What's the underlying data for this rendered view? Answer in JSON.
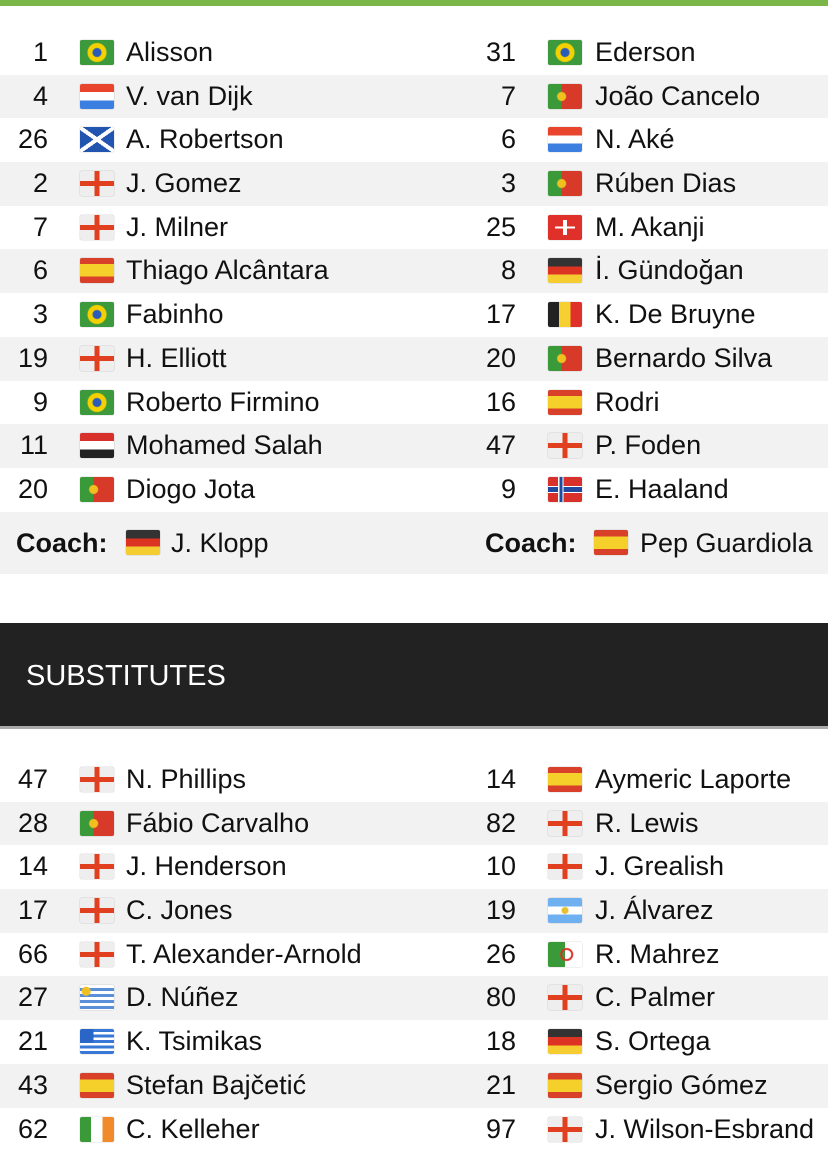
{
  "starting": {
    "home": [
      {
        "num": "1",
        "flag": "br",
        "name": "Alisson"
      },
      {
        "num": "4",
        "flag": "nl",
        "name": "V. van Dijk"
      },
      {
        "num": "26",
        "flag": "sco",
        "name": "A. Robertson"
      },
      {
        "num": "2",
        "flag": "eng",
        "name": "J. Gomez"
      },
      {
        "num": "7",
        "flag": "eng",
        "name": "J. Milner"
      },
      {
        "num": "6",
        "flag": "es",
        "name": "Thiago Alcântara"
      },
      {
        "num": "3",
        "flag": "br",
        "name": "Fabinho"
      },
      {
        "num": "19",
        "flag": "eng",
        "name": "H. Elliott"
      },
      {
        "num": "9",
        "flag": "br",
        "name": "Roberto Firmino"
      },
      {
        "num": "11",
        "flag": "eg",
        "name": "Mohamed Salah"
      },
      {
        "num": "20",
        "flag": "pt",
        "name": "Diogo Jota"
      }
    ],
    "away": [
      {
        "num": "31",
        "flag": "br",
        "name": "Ederson"
      },
      {
        "num": "7",
        "flag": "pt",
        "name": "João Cancelo"
      },
      {
        "num": "6",
        "flag": "nl",
        "name": "N. Aké"
      },
      {
        "num": "3",
        "flag": "pt",
        "name": "Rúben Dias"
      },
      {
        "num": "25",
        "flag": "ch",
        "name": "M. Akanji"
      },
      {
        "num": "8",
        "flag": "de",
        "name": "İ. Gündoğan"
      },
      {
        "num": "17",
        "flag": "be",
        "name": "K. De Bruyne"
      },
      {
        "num": "20",
        "flag": "pt",
        "name": "Bernardo Silva"
      },
      {
        "num": "16",
        "flag": "es",
        "name": "Rodri"
      },
      {
        "num": "47",
        "flag": "eng",
        "name": "P. Foden"
      },
      {
        "num": "9",
        "flag": "no",
        "name": "E. Haaland"
      }
    ]
  },
  "coach": {
    "label": "Coach:",
    "home": {
      "flag": "de",
      "name": "J. Klopp"
    },
    "away": {
      "flag": "es",
      "name": "Pep Guardiola"
    }
  },
  "substitutes": {
    "title": "SUBSTITUTES",
    "home": [
      {
        "num": "47",
        "flag": "eng",
        "name": "N. Phillips"
      },
      {
        "num": "28",
        "flag": "pt",
        "name": "Fábio Carvalho"
      },
      {
        "num": "14",
        "flag": "eng",
        "name": "J. Henderson"
      },
      {
        "num": "17",
        "flag": "eng",
        "name": "C. Jones"
      },
      {
        "num": "66",
        "flag": "eng",
        "name": "T. Alexander-Arnold"
      },
      {
        "num": "27",
        "flag": "uy",
        "name": "D. Núñez"
      },
      {
        "num": "21",
        "flag": "gr",
        "name": "K. Tsimikas"
      },
      {
        "num": "43",
        "flag": "es",
        "name": "Stefan Bajčetić"
      },
      {
        "num": "62",
        "flag": "ie",
        "name": "C. Kelleher"
      }
    ],
    "away": [
      {
        "num": "14",
        "flag": "es",
        "name": "Aymeric Laporte"
      },
      {
        "num": "82",
        "flag": "eng",
        "name": "R. Lewis"
      },
      {
        "num": "10",
        "flag": "eng",
        "name": "J. Grealish"
      },
      {
        "num": "19",
        "flag": "ar",
        "name": "J. Álvarez"
      },
      {
        "num": "26",
        "flag": "dz",
        "name": "R. Mahrez"
      },
      {
        "num": "80",
        "flag": "eng",
        "name": "C. Palmer"
      },
      {
        "num": "18",
        "flag": "de",
        "name": "S. Ortega"
      },
      {
        "num": "21",
        "flag": "es",
        "name": "Sergio Gómez"
      },
      {
        "num": "97",
        "flag": "eng",
        "name": "J. Wilson-Esbrand"
      }
    ]
  },
  "colors": {
    "accent": "#7ab648",
    "header_bg": "#222222",
    "row_alt": "#f2f2f2"
  }
}
